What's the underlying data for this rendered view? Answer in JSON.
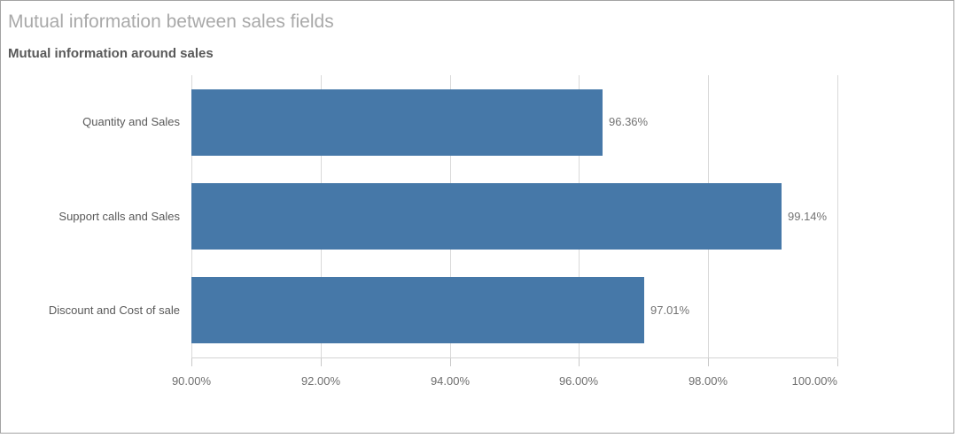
{
  "widget": {
    "title": "Mutual information between sales fields",
    "subtitle": "Mutual information around sales"
  },
  "chart_data": {
    "type": "bar",
    "orientation": "horizontal",
    "title": "Mutual information between sales fields",
    "subtitle": "Mutual information around sales",
    "categories": [
      "Quantity and Sales",
      "Support calls and Sales",
      "Discount and Cost of sale"
    ],
    "values": [
      96.36,
      99.14,
      97.01
    ],
    "value_labels": [
      "96.36%",
      "99.14%",
      "97.01%"
    ],
    "xlim": [
      90,
      100
    ],
    "x_ticks": [
      90,
      92,
      94,
      96,
      98,
      100
    ],
    "x_tick_labels": [
      "90.00%",
      "92.00%",
      "94.00%",
      "96.00%",
      "98.00%",
      "100.00%"
    ],
    "xlabel": "",
    "ylabel": "",
    "grid": true,
    "legend": false,
    "colors": {
      "bar": "#4678a8",
      "gridline": "#d9d9d9",
      "axis_line": "#d4d4d4",
      "title": "#a9a9a9",
      "subtitle": "#595959",
      "category_label": "#595959",
      "value_label": "#737373",
      "tick_label": "#6e6e6e",
      "widget_border": "#a3a3a3"
    }
  }
}
